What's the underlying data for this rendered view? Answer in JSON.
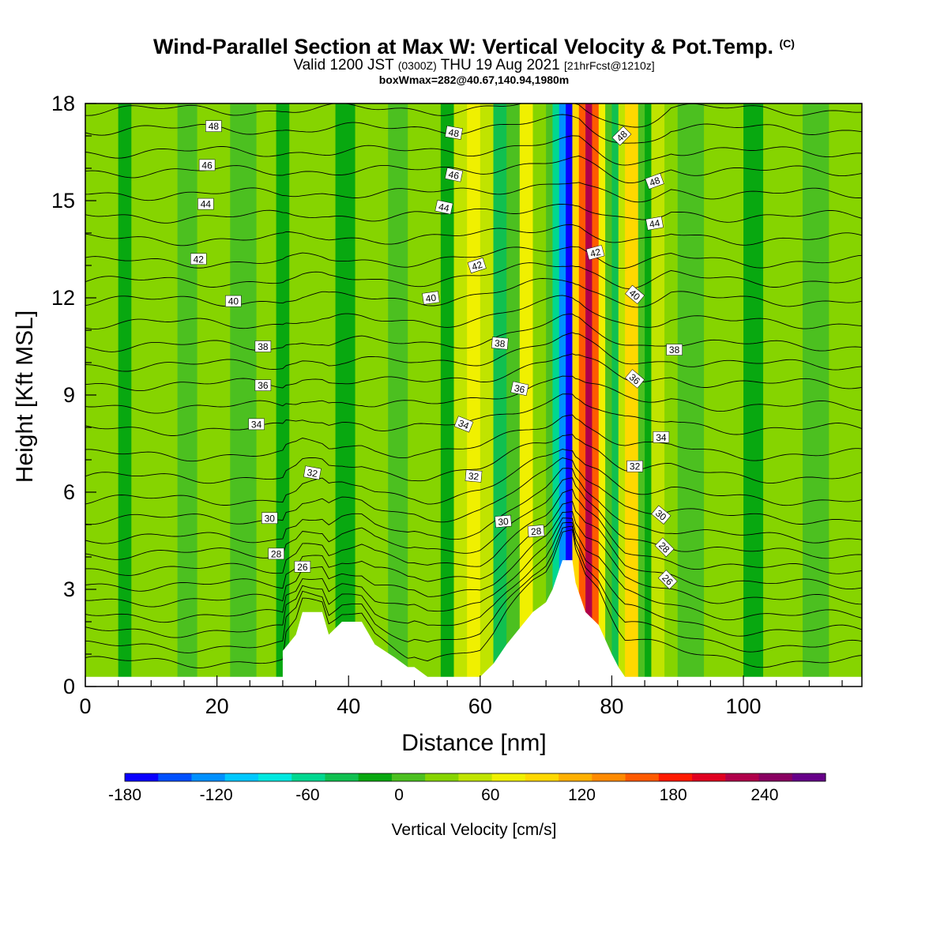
{
  "title": {
    "main": "Wind-Parallel Section at Max W: Vertical Velocity & Pot.Temp.",
    "copyright": "(C)",
    "valid_prefix": "Valid 1200 JST",
    "valid_utc": "(0300Z)",
    "valid_date": "THU 19 Aug 2021",
    "forecast": "[21hrFcst@1210z]",
    "box": "boxWmax=282@40.67,140.94,1980m"
  },
  "chart_data": {
    "type": "heatmap",
    "xlabel": "Distance [nm]",
    "ylabel": "Height [Kft MSL]",
    "xlim": [
      0,
      118
    ],
    "ylim": [
      0,
      18
    ],
    "x_ticks": [
      "0",
      "20",
      "40",
      "60",
      "80",
      "100"
    ],
    "x_tick_values": [
      0,
      20,
      40,
      60,
      80,
      100
    ],
    "y_ticks": [
      "0",
      "3",
      "6",
      "9",
      "12",
      "15",
      "18"
    ],
    "y_tick_values": [
      0,
      3,
      6,
      9,
      12,
      15,
      18
    ],
    "colorbar": {
      "title": "Vertical Velocity [cm/s]",
      "min": -180,
      "max": 260,
      "step": 20,
      "labels": [
        "-180",
        "-120",
        "-60",
        "0",
        "60",
        "120",
        "180",
        "240"
      ],
      "label_values": [
        -180,
        -120,
        -60,
        0,
        60,
        120,
        180,
        240
      ],
      "colors": [
        "#0a00ff",
        "#0050ff",
        "#0090ff",
        "#00c8ff",
        "#00e8e0",
        "#00d890",
        "#10c050",
        "#08a810",
        "#4cc020",
        "#86d400",
        "#c0e400",
        "#f0f000",
        "#ffd800",
        "#ffb000",
        "#ff8a00",
        "#ff5a00",
        "#ff1a00",
        "#e00020",
        "#b0004a",
        "#880060",
        "#660088"
      ]
    },
    "velocity_bands": [
      {
        "x0": 0,
        "x1": 5,
        "value": 8
      },
      {
        "x0": 5,
        "x1": 7,
        "value": -22
      },
      {
        "x0": 7,
        "x1": 14,
        "value": 6
      },
      {
        "x0": 14,
        "x1": 17,
        "value": -18
      },
      {
        "x0": 17,
        "x1": 22,
        "value": 10
      },
      {
        "x0": 22,
        "x1": 26,
        "value": -14
      },
      {
        "x0": 26,
        "x1": 29,
        "value": 12
      },
      {
        "x0": 29,
        "x1": 31,
        "value": -25
      },
      {
        "x0": 31,
        "x1": 38,
        "value": 4
      },
      {
        "x0": 38,
        "x1": 41,
        "value": -30
      },
      {
        "x0": 41,
        "x1": 46,
        "value": 10
      },
      {
        "x0": 46,
        "x1": 49,
        "value": -16
      },
      {
        "x0": 49,
        "x1": 54,
        "value": 6
      },
      {
        "x0": 54,
        "x1": 56,
        "value": -30
      },
      {
        "x0": 56,
        "x1": 58,
        "value": 30
      },
      {
        "x0": 58,
        "x1": 60,
        "value": 55
      },
      {
        "x0": 60,
        "x1": 62,
        "value": 25
      },
      {
        "x0": 62,
        "x1": 64,
        "value": -50
      },
      {
        "x0": 64,
        "x1": 66,
        "value": -12
      },
      {
        "x0": 66,
        "x1": 68,
        "value": 45
      },
      {
        "x0": 68,
        "x1": 70,
        "value": 15
      },
      {
        "x0": 70,
        "x1": 71,
        "value": -20
      },
      {
        "x0": 71,
        "x1": 72,
        "value": -80
      },
      {
        "x0": 72,
        "x1": 73,
        "value": -130
      },
      {
        "x0": 73,
        "x1": 74,
        "value": -180
      },
      {
        "x0": 74,
        "x1": 75,
        "value": 60
      },
      {
        "x0": 75,
        "x1": 76,
        "value": 130
      },
      {
        "x0": 76,
        "x1": 77,
        "value": 180
      },
      {
        "x0": 77,
        "x1": 78,
        "value": 120
      },
      {
        "x0": 78,
        "x1": 79,
        "value": 40
      },
      {
        "x0": 79,
        "x1": 80,
        "value": -20
      },
      {
        "x0": 80,
        "x1": 81,
        "value": -60
      },
      {
        "x0": 81,
        "x1": 82,
        "value": 20
      },
      {
        "x0": 82,
        "x1": 84,
        "value": 60
      },
      {
        "x0": 84,
        "x1": 85,
        "value": -10
      },
      {
        "x0": 85,
        "x1": 86,
        "value": -40
      },
      {
        "x0": 86,
        "x1": 88,
        "value": 35
      },
      {
        "x0": 88,
        "x1": 90,
        "value": 5
      },
      {
        "x0": 90,
        "x1": 94,
        "value": -12
      },
      {
        "x0": 94,
        "x1": 100,
        "value": 10
      },
      {
        "x0": 100,
        "x1": 103,
        "value": -22
      },
      {
        "x0": 103,
        "x1": 109,
        "value": 8
      },
      {
        "x0": 109,
        "x1": 113,
        "value": -14
      },
      {
        "x0": 113,
        "x1": 118,
        "value": 12
      }
    ],
    "terrain": [
      [
        0,
        0.3
      ],
      [
        30,
        0.3
      ],
      [
        30,
        1.1
      ],
      [
        32,
        1.6
      ],
      [
        33,
        2.3
      ],
      [
        36,
        2.3
      ],
      [
        37,
        1.6
      ],
      [
        39,
        2.0
      ],
      [
        42,
        2.0
      ],
      [
        44,
        1.3
      ],
      [
        47,
        0.9
      ],
      [
        49,
        0.6
      ],
      [
        50,
        0.6
      ],
      [
        52,
        0.3
      ],
      [
        60,
        0.3
      ],
      [
        62,
        0.7
      ],
      [
        64,
        1.3
      ],
      [
        66,
        1.8
      ],
      [
        68,
        2.3
      ],
      [
        70,
        2.6
      ],
      [
        71,
        3.0
      ],
      [
        72,
        3.6
      ],
      [
        72.5,
        3.9
      ],
      [
        74,
        3.9
      ],
      [
        74.5,
        3.2
      ],
      [
        76,
        2.3
      ],
      [
        78,
        1.9
      ],
      [
        80,
        1.0
      ],
      [
        81,
        0.6
      ],
      [
        82,
        0.3
      ],
      [
        118,
        0.3
      ]
    ],
    "isentropes": [
      {
        "base": 0.5,
        "label": null
      },
      {
        "base": 1.0,
        "label": null
      },
      {
        "base": 1.5,
        "label": null
      },
      {
        "base": 2.0,
        "label": null
      },
      {
        "base": 2.5,
        "label": null
      },
      {
        "base": 3.0,
        "label": null
      },
      {
        "base": 3.5,
        "label": "26"
      },
      {
        "base": 4.0,
        "label": "28"
      },
      {
        "base": 4.5,
        "label": null
      },
      {
        "base": 5.1,
        "label": "30"
      },
      {
        "base": 5.7,
        "label": null
      },
      {
        "base": 6.4,
        "label": "32"
      },
      {
        "base": 7.1,
        "label": null
      },
      {
        "base": 7.9,
        "label": "34"
      },
      {
        "base": 8.6,
        "label": null
      },
      {
        "base": 9.3,
        "label": "36"
      },
      {
        "base": 9.9,
        "label": null
      },
      {
        "base": 10.5,
        "label": "38"
      },
      {
        "base": 11.2,
        "label": null
      },
      {
        "base": 11.9,
        "label": "40"
      },
      {
        "base": 12.5,
        "label": null
      },
      {
        "base": 13.1,
        "label": "42"
      },
      {
        "base": 13.8,
        "label": null
      },
      {
        "base": 14.5,
        "label": "44"
      },
      {
        "base": 15.2,
        "label": null
      },
      {
        "base": 15.9,
        "label": "46"
      },
      {
        "base": 16.5,
        "label": null
      },
      {
        "base": 17.2,
        "label": "48"
      },
      {
        "base": 17.8,
        "label": null
      }
    ],
    "contour_labels": [
      {
        "text": "48",
        "x": 19.5,
        "y": 17.3,
        "rot": 0
      },
      {
        "text": "46",
        "x": 18.5,
        "y": 16.1,
        "rot": 0
      },
      {
        "text": "44",
        "x": 18.3,
        "y": 14.9,
        "rot": 0
      },
      {
        "text": "42",
        "x": 17.2,
        "y": 13.2,
        "rot": 0
      },
      {
        "text": "40",
        "x": 22.5,
        "y": 11.9,
        "rot": 0
      },
      {
        "text": "38",
        "x": 27.0,
        "y": 10.5,
        "rot": 0
      },
      {
        "text": "36",
        "x": 27.0,
        "y": 9.3,
        "rot": 0
      },
      {
        "text": "34",
        "x": 26.0,
        "y": 8.1,
        "rot": 0
      },
      {
        "text": "32",
        "x": 34.5,
        "y": 6.6,
        "rot": 10
      },
      {
        "text": "30",
        "x": 28.0,
        "y": 5.2,
        "rot": 0
      },
      {
        "text": "28",
        "x": 29.0,
        "y": 4.1,
        "rot": 0
      },
      {
        "text": "26",
        "x": 33.0,
        "y": 3.7,
        "rot": 0
      },
      {
        "text": "48",
        "x": 56.0,
        "y": 17.1,
        "rot": 10
      },
      {
        "text": "46",
        "x": 56.0,
        "y": 15.8,
        "rot": 12
      },
      {
        "text": "44",
        "x": 54.5,
        "y": 14.8,
        "rot": 12
      },
      {
        "text": "42",
        "x": 59.5,
        "y": 13.0,
        "rot": -18
      },
      {
        "text": "40",
        "x": 52.5,
        "y": 12.0,
        "rot": -8
      },
      {
        "text": "38",
        "x": 63.0,
        "y": 10.6,
        "rot": 5
      },
      {
        "text": "36",
        "x": 66.0,
        "y": 9.2,
        "rot": 12
      },
      {
        "text": "34",
        "x": 57.5,
        "y": 8.1,
        "rot": 22
      },
      {
        "text": "32",
        "x": 59.0,
        "y": 6.5,
        "rot": 5
      },
      {
        "text": "30",
        "x": 63.5,
        "y": 5.1,
        "rot": -5
      },
      {
        "text": "28",
        "x": 68.5,
        "y": 4.8,
        "rot": -5
      },
      {
        "text": "48",
        "x": 81.5,
        "y": 17.0,
        "rot": -45
      },
      {
        "text": "48",
        "x": 86.5,
        "y": 15.6,
        "rot": -20
      },
      {
        "text": "44",
        "x": 86.5,
        "y": 14.3,
        "rot": -10
      },
      {
        "text": "42",
        "x": 77.5,
        "y": 13.4,
        "rot": -15
      },
      {
        "text": "40",
        "x": 83.5,
        "y": 12.1,
        "rot": 40
      },
      {
        "text": "38",
        "x": 89.5,
        "y": 10.4,
        "rot": 0
      },
      {
        "text": "36",
        "x": 83.5,
        "y": 9.5,
        "rot": 40
      },
      {
        "text": "34",
        "x": 87.5,
        "y": 7.7,
        "rot": 0
      },
      {
        "text": "32",
        "x": 83.5,
        "y": 6.8,
        "rot": 0
      },
      {
        "text": "30",
        "x": 87.5,
        "y": 5.3,
        "rot": 40
      },
      {
        "text": "28",
        "x": 88.0,
        "y": 4.3,
        "rot": 45
      },
      {
        "text": "26",
        "x": 88.5,
        "y": 3.3,
        "rot": 45
      }
    ]
  }
}
